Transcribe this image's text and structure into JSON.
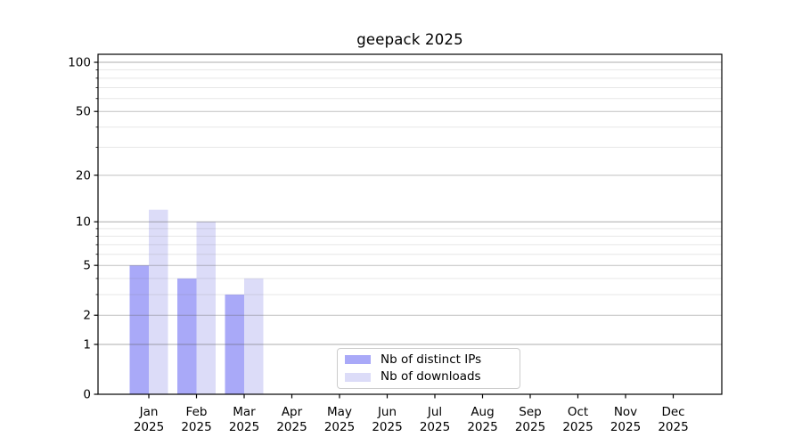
{
  "title": "geepack 2025",
  "chart_data": {
    "type": "bar",
    "title": "geepack 2025",
    "categories": [
      "Jan",
      "Feb",
      "Mar",
      "Apr",
      "May",
      "Jun",
      "Jul",
      "Aug",
      "Sep",
      "Oct",
      "Nov",
      "Dec"
    ],
    "category_year": "2025",
    "series": [
      {
        "name": "Nb of distinct IPs",
        "color": "#a9a9f8",
        "values": [
          5,
          4,
          3,
          0,
          0,
          0,
          0,
          0,
          0,
          0,
          0,
          0
        ]
      },
      {
        "name": "Nb of downloads",
        "color": "#dcdcf8",
        "values": [
          12,
          10,
          4,
          0,
          0,
          0,
          0,
          0,
          0,
          0,
          0,
          0
        ]
      }
    ],
    "yscale": "log1p",
    "ylim": [
      0,
      113
    ],
    "ytick_values": [
      0,
      1,
      2,
      5,
      10,
      20,
      50,
      100
    ],
    "grid": {
      "on": true,
      "strong_values": [
        1,
        10,
        100
      ],
      "medium_values": [
        2,
        5,
        20,
        50
      ],
      "minor_values": [
        3,
        4,
        6,
        7,
        8,
        9,
        30,
        40,
        60,
        70,
        80,
        90
      ]
    },
    "legend": {
      "position": "lower center",
      "entries": [
        "Nb of distinct IPs",
        "Nb of downloads"
      ]
    }
  }
}
